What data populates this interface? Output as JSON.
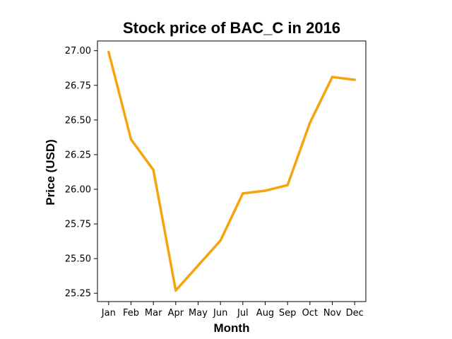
{
  "chart_data": {
    "type": "line",
    "title": "Stock price of BAC_C in 2016",
    "xlabel": "Month",
    "ylabel": "Price (USD)",
    "categories": [
      "Jan",
      "Feb",
      "Mar",
      "Apr",
      "May",
      "Jun",
      "Jul",
      "Aug",
      "Sep",
      "Oct",
      "Nov",
      "Dec"
    ],
    "series": [
      {
        "values": [
          26.99,
          26.36,
          26.14,
          25.27,
          25.45,
          25.63,
          25.97,
          25.99,
          26.03,
          26.48,
          26.81,
          26.79
        ],
        "color": "#f5a30e"
      }
    ],
    "y_ticks": [
      "25.25",
      "25.50",
      "25.75",
      "26.00",
      "26.25",
      "26.50",
      "26.75",
      "27.00"
    ],
    "ylim": [
      25.19,
      27.07
    ],
    "grid": false,
    "legend": "none"
  }
}
